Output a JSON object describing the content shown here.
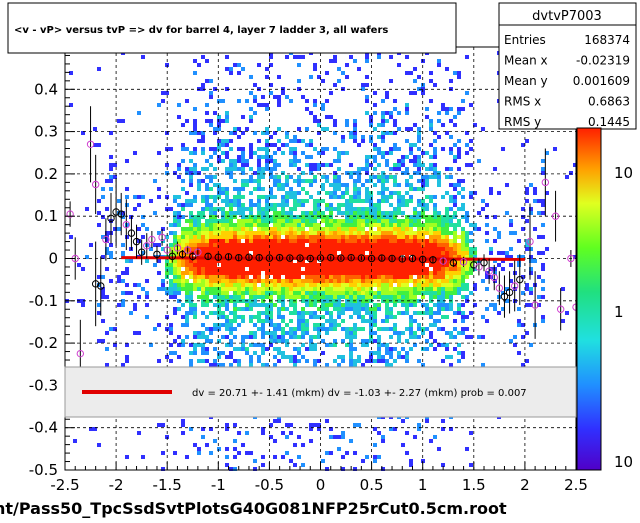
{
  "chart_data": {
    "type": "heatmap",
    "title": "<v - vP>       versus  tvP =>  dv for barrel 4, layer 7 ladder 3, all wafers",
    "xlabel": "",
    "ylabel": "",
    "footer": "nt/Pass50_TpcSsdSvtPlotsG40G081NFP25rCut0.5cm.root",
    "xlim": [
      -2.5,
      2.5
    ],
    "ylim": [
      -0.5,
      0.5
    ],
    "x_ticks": [
      "-2.5",
      "-2",
      "-1.5",
      "-1",
      "-0.5",
      "0",
      "0.5",
      "1",
      "1.5",
      "2",
      "2.5"
    ],
    "y_ticks": [
      "-0.5",
      "-0.4",
      "-0.3",
      "-0.2",
      "-0.1",
      "0",
      "0.1",
      "0.2",
      "0.3",
      "0.4",
      "0.5"
    ],
    "grid": true,
    "stats": {
      "name": "dvtvP7003",
      "rows": [
        {
          "label": "Entries",
          "value": "168374"
        },
        {
          "label": "Mean x",
          "value": "-0.02319"
        },
        {
          "label": "Mean y",
          "value": "0.001609"
        },
        {
          "label": "RMS x",
          "value": "0.6863"
        },
        {
          "label": "RMS y",
          "value": "0.1445"
        }
      ]
    },
    "colorbar_labels": [
      "10",
      "1",
      "10"
    ],
    "fit_legend": "dv =   20.71 +-  1.41 (mkm) dv =   -1.03 +-  2.27 (mkm) prob = 0.007",
    "fit_line": {
      "x": [
        -1.95,
        2.0
      ],
      "y": [
        0.0021,
        -0.0021
      ],
      "color": "#e00000"
    },
    "profile_points": [
      {
        "x": -2.45,
        "y": 0.105,
        "e": 0.03,
        "c": "violet"
      },
      {
        "x": -2.4,
        "y": 0.0,
        "e": 0.05,
        "c": "violet"
      },
      {
        "x": -2.35,
        "y": -0.225,
        "e": 0.08,
        "c": "violet"
      },
      {
        "x": -2.25,
        "y": 0.27,
        "e": 0.09,
        "c": "violet"
      },
      {
        "x": -2.2,
        "y": 0.175,
        "e": 0.07,
        "c": "violet"
      },
      {
        "x": -2.2,
        "y": -0.06,
        "e": 0.1,
        "c": "black"
      },
      {
        "x": -2.15,
        "y": -0.065,
        "e": 0.07,
        "c": "black"
      },
      {
        "x": -2.1,
        "y": 0.045,
        "e": 0.05,
        "c": "violet"
      },
      {
        "x": -2.05,
        "y": 0.095,
        "e": 0.06,
        "c": "black"
      },
      {
        "x": -2.0,
        "y": 0.11,
        "e": 0.08,
        "c": "black"
      },
      {
        "x": -1.95,
        "y": 0.105,
        "e": 0.05,
        "c": "black"
      },
      {
        "x": -1.9,
        "y": 0.08,
        "e": 0.06,
        "c": "violet"
      },
      {
        "x": -1.85,
        "y": 0.06,
        "e": 0.04,
        "c": "black"
      },
      {
        "x": -1.8,
        "y": 0.04,
        "e": 0.04,
        "c": "black"
      },
      {
        "x": -1.75,
        "y": 0.015,
        "e": 0.03,
        "c": "black"
      },
      {
        "x": -1.7,
        "y": 0.03,
        "e": 0.03,
        "c": "violet"
      },
      {
        "x": -1.65,
        "y": 0.045,
        "e": 0.02,
        "c": "violet"
      },
      {
        "x": -1.6,
        "y": 0.01,
        "e": 0.02,
        "c": "black"
      },
      {
        "x": -1.55,
        "y": 0.05,
        "e": 0.02,
        "c": "violet"
      },
      {
        "x": -1.5,
        "y": 0.02,
        "e": 0.015,
        "c": "violet"
      },
      {
        "x": -1.45,
        "y": 0.005,
        "e": 0.015,
        "c": "black"
      },
      {
        "x": -1.4,
        "y": 0.025,
        "e": 0.015,
        "c": "violet"
      },
      {
        "x": -1.35,
        "y": 0.01,
        "e": 0.01,
        "c": "black"
      },
      {
        "x": -1.3,
        "y": 0.02,
        "e": 0.01,
        "c": "violet"
      },
      {
        "x": -1.25,
        "y": 0.005,
        "e": 0.01,
        "c": "black"
      },
      {
        "x": -1.2,
        "y": 0.015,
        "e": 0.01,
        "c": "violet"
      },
      {
        "x": -1.1,
        "y": 0.005,
        "e": 0.008,
        "c": "black"
      },
      {
        "x": -1.0,
        "y": 0.003,
        "e": 0.008,
        "c": "black"
      },
      {
        "x": -0.9,
        "y": 0.004,
        "e": 0.007,
        "c": "black"
      },
      {
        "x": -0.8,
        "y": 0.002,
        "e": 0.007,
        "c": "black"
      },
      {
        "x": -0.7,
        "y": 0.003,
        "e": 0.006,
        "c": "black"
      },
      {
        "x": -0.6,
        "y": 0.002,
        "e": 0.006,
        "c": "black"
      },
      {
        "x": -0.5,
        "y": 0.001,
        "e": 0.005,
        "c": "black"
      },
      {
        "x": -0.4,
        "y": 0.002,
        "e": 0.005,
        "c": "black"
      },
      {
        "x": -0.3,
        "y": 0.001,
        "e": 0.005,
        "c": "black"
      },
      {
        "x": -0.2,
        "y": 0.001,
        "e": 0.005,
        "c": "black"
      },
      {
        "x": -0.1,
        "y": 0.0,
        "e": 0.005,
        "c": "black"
      },
      {
        "x": 0.0,
        "y": 0.001,
        "e": 0.005,
        "c": "black"
      },
      {
        "x": 0.1,
        "y": 0.002,
        "e": 0.005,
        "c": "black"
      },
      {
        "x": 0.2,
        "y": 0.001,
        "e": 0.005,
        "c": "black"
      },
      {
        "x": 0.3,
        "y": 0.002,
        "e": 0.005,
        "c": "black"
      },
      {
        "x": 0.4,
        "y": 0.001,
        "e": 0.005,
        "c": "black"
      },
      {
        "x": 0.5,
        "y": 0.0,
        "e": 0.005,
        "c": "black"
      },
      {
        "x": 0.6,
        "y": 0.001,
        "e": 0.006,
        "c": "black"
      },
      {
        "x": 0.7,
        "y": 0.0,
        "e": 0.006,
        "c": "black"
      },
      {
        "x": 0.8,
        "y": -0.001,
        "e": 0.007,
        "c": "black"
      },
      {
        "x": 0.9,
        "y": 0.0,
        "e": 0.007,
        "c": "black"
      },
      {
        "x": 1.0,
        "y": -0.002,
        "e": 0.008,
        "c": "black"
      },
      {
        "x": 1.1,
        "y": -0.003,
        "e": 0.009,
        "c": "black"
      },
      {
        "x": 1.2,
        "y": -0.006,
        "e": 0.01,
        "c": "violet"
      },
      {
        "x": 1.3,
        "y": -0.01,
        "e": 0.01,
        "c": "black"
      },
      {
        "x": 1.4,
        "y": -0.008,
        "e": 0.012,
        "c": "violet"
      },
      {
        "x": 1.5,
        "y": -0.015,
        "e": 0.015,
        "c": "black"
      },
      {
        "x": 1.55,
        "y": -0.02,
        "e": 0.02,
        "c": "violet"
      },
      {
        "x": 1.6,
        "y": -0.01,
        "e": 0.02,
        "c": "black"
      },
      {
        "x": 1.65,
        "y": -0.03,
        "e": 0.03,
        "c": "violet"
      },
      {
        "x": 1.7,
        "y": -0.045,
        "e": 0.03,
        "c": "violet"
      },
      {
        "x": 1.75,
        "y": -0.07,
        "e": 0.04,
        "c": "violet"
      },
      {
        "x": 1.8,
        "y": -0.09,
        "e": 0.05,
        "c": "black"
      },
      {
        "x": 1.85,
        "y": -0.08,
        "e": 0.05,
        "c": "black"
      },
      {
        "x": 1.9,
        "y": -0.065,
        "e": 0.06,
        "c": "violet"
      },
      {
        "x": 1.95,
        "y": -0.05,
        "e": 0.06,
        "c": "black"
      },
      {
        "x": 2.05,
        "y": 0.04,
        "e": 0.09,
        "c": "violet"
      },
      {
        "x": 2.1,
        "y": -0.11,
        "e": 0.08,
        "c": "violet"
      },
      {
        "x": 2.2,
        "y": 0.18,
        "e": 0.08,
        "c": "violet"
      },
      {
        "x": 2.3,
        "y": 0.1,
        "e": 0.06,
        "c": "violet"
      },
      {
        "x": 2.35,
        "y": -0.12,
        "e": 0.05,
        "c": "violet"
      },
      {
        "x": 2.45,
        "y": 0.0,
        "e": 0.02,
        "c": "violet"
      },
      {
        "x": 2.5,
        "y": -0.115,
        "e": 0.02,
        "c": "violet"
      }
    ]
  }
}
